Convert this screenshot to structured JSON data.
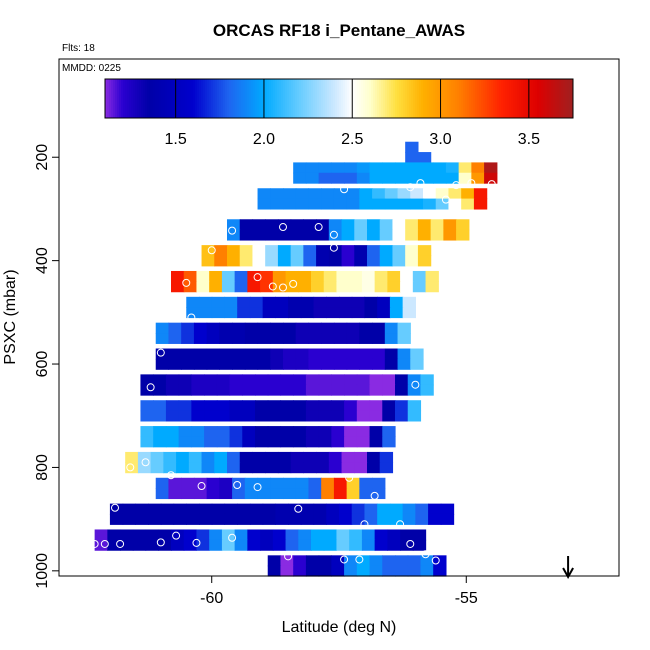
{
  "chart_data": {
    "type": "heatmap",
    "title": "ORCAS RF18 i_Pentane_AWAS",
    "subtitle_left": "Flts: 18",
    "annotation": "MMDD: 0225",
    "xlabel": "Latitude (deg N)",
    "ylabel": "PSXC (mbar)",
    "xlim": [
      -63.0,
      -52.0
    ],
    "ylim": [
      1010,
      10
    ],
    "y_reversed": true,
    "x_ticks": [
      -60,
      -55
    ],
    "x_tick_labels": [
      "-60",
      "-55"
    ],
    "y_ticks": [
      200,
      400,
      600,
      800,
      1000
    ],
    "y_tick_labels": [
      "200",
      "400",
      "600",
      "800",
      "1000"
    ],
    "colorbar": {
      "range": [
        1.1,
        3.75
      ],
      "ticks": [
        1.5,
        2.0,
        2.5,
        3.0,
        3.5
      ],
      "tick_labels": [
        "1.5",
        "2.0",
        "2.5",
        "3.0",
        "3.5"
      ],
      "stops": [
        {
          "v": 1.1,
          "c": "#8a2be2"
        },
        {
          "v": 1.2,
          "c": "#2a00d0"
        },
        {
          "v": 1.35,
          "c": "#0000a8"
        },
        {
          "v": 1.6,
          "c": "#0000cd"
        },
        {
          "v": 1.8,
          "c": "#1e64f0"
        },
        {
          "v": 2.0,
          "c": "#00aaff"
        },
        {
          "v": 2.2,
          "c": "#66ccff"
        },
        {
          "v": 2.4,
          "c": "#cce8ff"
        },
        {
          "v": 2.5,
          "c": "#ffffff"
        },
        {
          "v": 2.6,
          "c": "#ffffcc"
        },
        {
          "v": 2.75,
          "c": "#ffe040"
        },
        {
          "v": 2.9,
          "c": "#ffb000"
        },
        {
          "v": 3.1,
          "c": "#ff8000"
        },
        {
          "v": 3.35,
          "c": "#ff2000"
        },
        {
          "v": 3.55,
          "c": "#dd0000"
        },
        {
          "v": 3.75,
          "c": "#a02020"
        }
      ]
    },
    "cell_width_deg": 0.25,
    "cell_height_mbar": 20,
    "rows": [
      {
        "p": 180,
        "x0": -56.2,
        "values": [
          1.8
        ]
      },
      {
        "p": 200,
        "x0": -56.2,
        "values": [
          1.8,
          1.8
        ]
      },
      {
        "p": 220,
        "x0": -58.4,
        "values": [
          1.9,
          1.9,
          1.9,
          1.9,
          1.9,
          1.95,
          2.0,
          2.0,
          2.0,
          2.0,
          2.0,
          2.0,
          2.05,
          2.7,
          3.1,
          3.7
        ]
      },
      {
        "p": 240,
        "x0": -58.4,
        "values": [
          1.9,
          1.9,
          1.8,
          1.8,
          1.8,
          1.9,
          2.0,
          2.0,
          2.0,
          2.0,
          2.0,
          2.0,
          2.0,
          2.6,
          3.0,
          3.6
        ]
      },
      {
        "p": 270,
        "x0": -59.1,
        "values": [
          1.9,
          1.9,
          1.9,
          1.9,
          1.9,
          1.9,
          1.9,
          1.9,
          2.0,
          2.1,
          2.2,
          2.3,
          2.4,
          2.5,
          2.6,
          2.7,
          2.9,
          3.4
        ]
      },
      {
        "p": 290,
        "x0": -59.1,
        "values": [
          1.9,
          1.9,
          1.9,
          1.9,
          1.9,
          1.9,
          1.9,
          1.9,
          2.0,
          2.0,
          2.0,
          2.0,
          2.0,
          2.05,
          2.2,
          2.5,
          2.7,
          3.4
        ]
      },
      {
        "p": 330,
        "x0": -59.7,
        "values": [
          1.9,
          1.35,
          1.35,
          1.35,
          1.35,
          1.35,
          1.35,
          1.35,
          1.9,
          2.0,
          2.2,
          2.0,
          2.2,
          2.5,
          2.7,
          2.9,
          2.7,
          3.0,
          2.8
        ]
      },
      {
        "p": 350,
        "x0": -59.7,
        "values": [
          1.9,
          1.35,
          1.35,
          1.35,
          1.35,
          1.35,
          1.35,
          1.35,
          1.9,
          2.0,
          2.2,
          2.0,
          2.2,
          2.5,
          2.7,
          2.9,
          2.7,
          3.0,
          2.8
        ]
      },
      {
        "p": 380,
        "x0": -60.2,
        "values": [
          2.85,
          3.1,
          2.9,
          2.7,
          2.5,
          2.3,
          2.0,
          2.2,
          1.8,
          1.4,
          1.35,
          1.2,
          1.4,
          1.8,
          2.0,
          2.2,
          2.6,
          2.8
        ]
      },
      {
        "p": 400,
        "x0": -60.2,
        "values": [
          2.85,
          3.1,
          2.9,
          2.7,
          2.5,
          2.3,
          2.0,
          2.2,
          1.8,
          1.4,
          1.35,
          1.2,
          1.4,
          1.8,
          2.0,
          2.2,
          2.6,
          2.8
        ]
      },
      {
        "p": 430,
        "x0": -60.8,
        "values": [
          3.4,
          3.2,
          2.6,
          2.9,
          2.2,
          1.8,
          3.4,
          3.3,
          3.0,
          2.9,
          2.9,
          2.8,
          2.7,
          2.6,
          2.6,
          2.55,
          2.7,
          2.8,
          2.5,
          2.2,
          2.7
        ]
      },
      {
        "p": 450,
        "x0": -60.8,
        "values": [
          3.4,
          3.2,
          2.6,
          2.9,
          2.2,
          1.8,
          3.4,
          3.3,
          3.0,
          2.9,
          2.9,
          2.8,
          2.7,
          2.6,
          2.6,
          2.55,
          2.7,
          2.8,
          2.5,
          2.2,
          2.7
        ]
      },
      {
        "p": 480,
        "x0": -60.5,
        "values": [
          1.9,
          1.9,
          1.9,
          1.9,
          1.7,
          1.7,
          1.5,
          1.5,
          1.4,
          1.4,
          1.3,
          1.3,
          1.3,
          1.3,
          1.35,
          1.5,
          2.0,
          2.4
        ]
      },
      {
        "p": 500,
        "x0": -60.5,
        "values": [
          1.9,
          1.9,
          1.9,
          1.9,
          1.7,
          1.7,
          1.5,
          1.5,
          1.4,
          1.4,
          1.3,
          1.3,
          1.3,
          1.3,
          1.35,
          1.5,
          2.0,
          2.4
        ]
      },
      {
        "p": 530,
        "x0": -61.1,
        "values": [
          1.9,
          1.8,
          1.7,
          1.6,
          1.5,
          1.4,
          1.4,
          1.35,
          1.35,
          1.35,
          1.35,
          1.3,
          1.3,
          1.3,
          1.3,
          1.3,
          1.35,
          1.35,
          1.9,
          2.2
        ]
      },
      {
        "p": 550,
        "x0": -61.1,
        "values": [
          1.9,
          1.8,
          1.7,
          1.6,
          1.5,
          1.4,
          1.4,
          1.35,
          1.35,
          1.35,
          1.35,
          1.3,
          1.3,
          1.3,
          1.3,
          1.3,
          1.35,
          1.35,
          1.9,
          2.2
        ]
      },
      {
        "p": 580,
        "x0": -61.1,
        "values": [
          1.35,
          1.35,
          1.35,
          1.35,
          1.35,
          1.35,
          1.35,
          1.35,
          1.35,
          1.3,
          1.25,
          1.25,
          1.2,
          1.2,
          1.2,
          1.2,
          1.2,
          1.2,
          1.35,
          1.9,
          2.2
        ]
      },
      {
        "p": 600,
        "x0": -61.1,
        "values": [
          1.35,
          1.35,
          1.35,
          1.35,
          1.35,
          1.35,
          1.35,
          1.35,
          1.35,
          1.3,
          1.25,
          1.25,
          1.2,
          1.2,
          1.2,
          1.2,
          1.2,
          1.2,
          1.35,
          1.9,
          2.2
        ]
      },
      {
        "p": 630,
        "x0": -61.4,
        "values": [
          1.35,
          1.35,
          1.3,
          1.3,
          1.25,
          1.25,
          1.25,
          1.2,
          1.2,
          1.2,
          1.2,
          1.2,
          1.2,
          1.15,
          1.15,
          1.15,
          1.15,
          1.15,
          1.1,
          1.1,
          1.35,
          1.9,
          2.1
        ]
      },
      {
        "p": 650,
        "x0": -61.4,
        "values": [
          1.35,
          1.35,
          1.3,
          1.3,
          1.25,
          1.25,
          1.25,
          1.2,
          1.2,
          1.2,
          1.2,
          1.2,
          1.2,
          1.15,
          1.15,
          1.15,
          1.15,
          1.15,
          1.1,
          1.1,
          1.35,
          1.9,
          2.1
        ]
      },
      {
        "p": 680,
        "x0": -61.4,
        "values": [
          1.8,
          1.8,
          1.7,
          1.7,
          1.6,
          1.6,
          1.6,
          1.5,
          1.5,
          1.35,
          1.35,
          1.35,
          1.35,
          1.3,
          1.3,
          1.3,
          1.2,
          1.1,
          1.1,
          1.35,
          1.7,
          2.1
        ]
      },
      {
        "p": 700,
        "x0": -61.4,
        "values": [
          1.8,
          1.8,
          1.7,
          1.7,
          1.6,
          1.6,
          1.6,
          1.5,
          1.5,
          1.35,
          1.35,
          1.35,
          1.35,
          1.3,
          1.3,
          1.3,
          1.2,
          1.1,
          1.1,
          1.35,
          1.7,
          2.1
        ]
      },
      {
        "p": 730,
        "x0": -61.4,
        "values": [
          2.1,
          2.0,
          2.0,
          1.9,
          1.9,
          1.8,
          1.8,
          1.7,
          1.5,
          1.35,
          1.35,
          1.35,
          1.35,
          1.3,
          1.3,
          1.2,
          1.1,
          1.1,
          1.35,
          1.8
        ]
      },
      {
        "p": 750,
        "x0": -61.4,
        "values": [
          2.1,
          2.0,
          2.0,
          1.9,
          1.9,
          1.8,
          1.8,
          1.7,
          1.5,
          1.35,
          1.35,
          1.35,
          1.35,
          1.3,
          1.3,
          1.2,
          1.1,
          1.1,
          1.35,
          1.8
        ]
      },
      {
        "p": 780,
        "x0": -61.7,
        "values": [
          2.7,
          2.3,
          2.2,
          2.1,
          2.0,
          2.1,
          1.9,
          2.0,
          1.8,
          1.35,
          1.35,
          1.35,
          1.35,
          1.3,
          1.3,
          1.3,
          1.2,
          1.1,
          1.1,
          1.35,
          1.7
        ]
      },
      {
        "p": 800,
        "x0": -61.7,
        "values": [
          2.7,
          2.3,
          2.2,
          2.1,
          2.0,
          2.1,
          1.9,
          2.0,
          1.8,
          1.35,
          1.35,
          1.35,
          1.35,
          1.3,
          1.3,
          1.3,
          1.2,
          1.1,
          1.1,
          1.35,
          1.7
        ]
      },
      {
        "p": 830,
        "x0": -61.1,
        "values": [
          1.8,
          1.15,
          1.15,
          1.15,
          1.2,
          1.25,
          1.8,
          1.9,
          1.9,
          1.9,
          1.9,
          1.9,
          1.8,
          3.1,
          3.4,
          2.8,
          1.8,
          1.8
        ]
      },
      {
        "p": 850,
        "x0": -61.1,
        "values": [
          1.8,
          1.15,
          1.15,
          1.15,
          1.2,
          1.25,
          1.8,
          1.9,
          1.9,
          1.9,
          1.9,
          1.9,
          1.8,
          3.1,
          3.4,
          2.8,
          1.8,
          1.8
        ]
      },
      {
        "p": 880,
        "x0": -62.0,
        "values": [
          1.35,
          1.35,
          1.35,
          1.35,
          1.35,
          1.35,
          1.35,
          1.35,
          1.35,
          1.35,
          1.35,
          1.35,
          1.35,
          1.4,
          1.4,
          1.4,
          1.4,
          1.5,
          1.6,
          1.7,
          1.8,
          2.0,
          2.0,
          1.9,
          1.8,
          1.6,
          1.6
        ]
      },
      {
        "p": 900,
        "x0": -62.0,
        "values": [
          1.35,
          1.35,
          1.35,
          1.35,
          1.35,
          1.35,
          1.35,
          1.35,
          1.35,
          1.35,
          1.35,
          1.35,
          1.35,
          1.4,
          1.4,
          1.4,
          1.4,
          1.5,
          1.6,
          1.7,
          1.8,
          2.0,
          2.0,
          1.9,
          1.8,
          1.6,
          1.6
        ]
      },
      {
        "p": 930,
        "x0": -62.3,
        "values": [
          1.15,
          1.35,
          1.35,
          1.35,
          1.35,
          1.35,
          1.5,
          1.6,
          1.7,
          1.9,
          2.2,
          1.9,
          1.6,
          1.5,
          1.6,
          1.8,
          1.9,
          2.0,
          2.0,
          2.2,
          2.1,
          1.9,
          1.6,
          1.5,
          1.35,
          1.35
        ]
      },
      {
        "p": 950,
        "x0": -62.3,
        "values": [
          1.15,
          1.35,
          1.35,
          1.35,
          1.35,
          1.35,
          1.5,
          1.6,
          1.7,
          1.9,
          2.2,
          1.9,
          1.6,
          1.5,
          1.6,
          1.8,
          1.9,
          2.0,
          2.0,
          2.2,
          2.1,
          1.9,
          1.6,
          1.5,
          1.35,
          1.35
        ]
      },
      {
        "p": 980,
        "x0": -58.9,
        "values": [
          1.35,
          1.1,
          1.2,
          1.35,
          1.35,
          1.5,
          1.9,
          2.0,
          1.9,
          1.8,
          1.8,
          1.8,
          1.9,
          1.6
        ]
      },
      {
        "p": 1000,
        "x0": -58.9,
        "values": [
          1.35,
          1.1,
          1.2,
          1.35,
          1.35,
          1.5,
          1.9,
          2.0,
          1.9,
          1.8,
          1.8,
          1.8,
          1.9,
          1.6
        ]
      }
    ],
    "sample_points": [
      {
        "x": -56.9,
        "y": 200
      },
      {
        "x": -57.4,
        "y": 262
      },
      {
        "x": -56.1,
        "y": 258
      },
      {
        "x": -55.9,
        "y": 250
      },
      {
        "x": -55.2,
        "y": 254
      },
      {
        "x": -54.9,
        "y": 250
      },
      {
        "x": -54.5,
        "y": 252
      },
      {
        "x": -55.4,
        "y": 282
      },
      {
        "x": -57.9,
        "y": 335
      },
      {
        "x": -58.6,
        "y": 335
      },
      {
        "x": -57.6,
        "y": 350
      },
      {
        "x": -59.6,
        "y": 342
      },
      {
        "x": -60.0,
        "y": 380
      },
      {
        "x": -57.6,
        "y": 375
      },
      {
        "x": -55.4,
        "y": 377
      },
      {
        "x": -54.6,
        "y": 394
      },
      {
        "x": -54.2,
        "y": 393
      },
      {
        "x": -60.5,
        "y": 443
      },
      {
        "x": -59.1,
        "y": 432
      },
      {
        "x": -58.8,
        "y": 450
      },
      {
        "x": -58.4,
        "y": 445
      },
      {
        "x": -58.6,
        "y": 452
      },
      {
        "x": -55.6,
        "y": 495
      },
      {
        "x": -60.4,
        "y": 510
      },
      {
        "x": -61.0,
        "y": 578
      },
      {
        "x": -61.2,
        "y": 645
      },
      {
        "x": -56.0,
        "y": 640
      },
      {
        "x": -61.6,
        "y": 728
      },
      {
        "x": -61.6,
        "y": 800
      },
      {
        "x": -61.3,
        "y": 790
      },
      {
        "x": -60.8,
        "y": 815
      },
      {
        "x": -60.2,
        "y": 836
      },
      {
        "x": -59.5,
        "y": 834
      },
      {
        "x": -59.1,
        "y": 838
      },
      {
        "x": -58.3,
        "y": 880
      },
      {
        "x": -57.3,
        "y": 820
      },
      {
        "x": -56.2,
        "y": 855
      },
      {
        "x": -56.4,
        "y": 850
      },
      {
        "x": -56.8,
        "y": 855
      },
      {
        "x": -55.9,
        "y": 822
      },
      {
        "x": -57.0,
        "y": 910
      },
      {
        "x": -56.3,
        "y": 910
      },
      {
        "x": -61.9,
        "y": 878
      },
      {
        "x": -62.3,
        "y": 948
      },
      {
        "x": -62.1,
        "y": 948
      },
      {
        "x": -61.8,
        "y": 948
      },
      {
        "x": -61.0,
        "y": 945
      },
      {
        "x": -60.7,
        "y": 932
      },
      {
        "x": -60.3,
        "y": 946
      },
      {
        "x": -59.6,
        "y": 936
      },
      {
        "x": -59.0,
        "y": 972
      },
      {
        "x": -58.5,
        "y": 972
      },
      {
        "x": -57.4,
        "y": 978
      },
      {
        "x": -57.1,
        "y": 978
      },
      {
        "x": -56.1,
        "y": 948
      },
      {
        "x": -55.8,
        "y": 968
      },
      {
        "x": -55.6,
        "y": 980
      }
    ],
    "arrow_marker": {
      "x": -53.0,
      "direction": "down"
    }
  }
}
